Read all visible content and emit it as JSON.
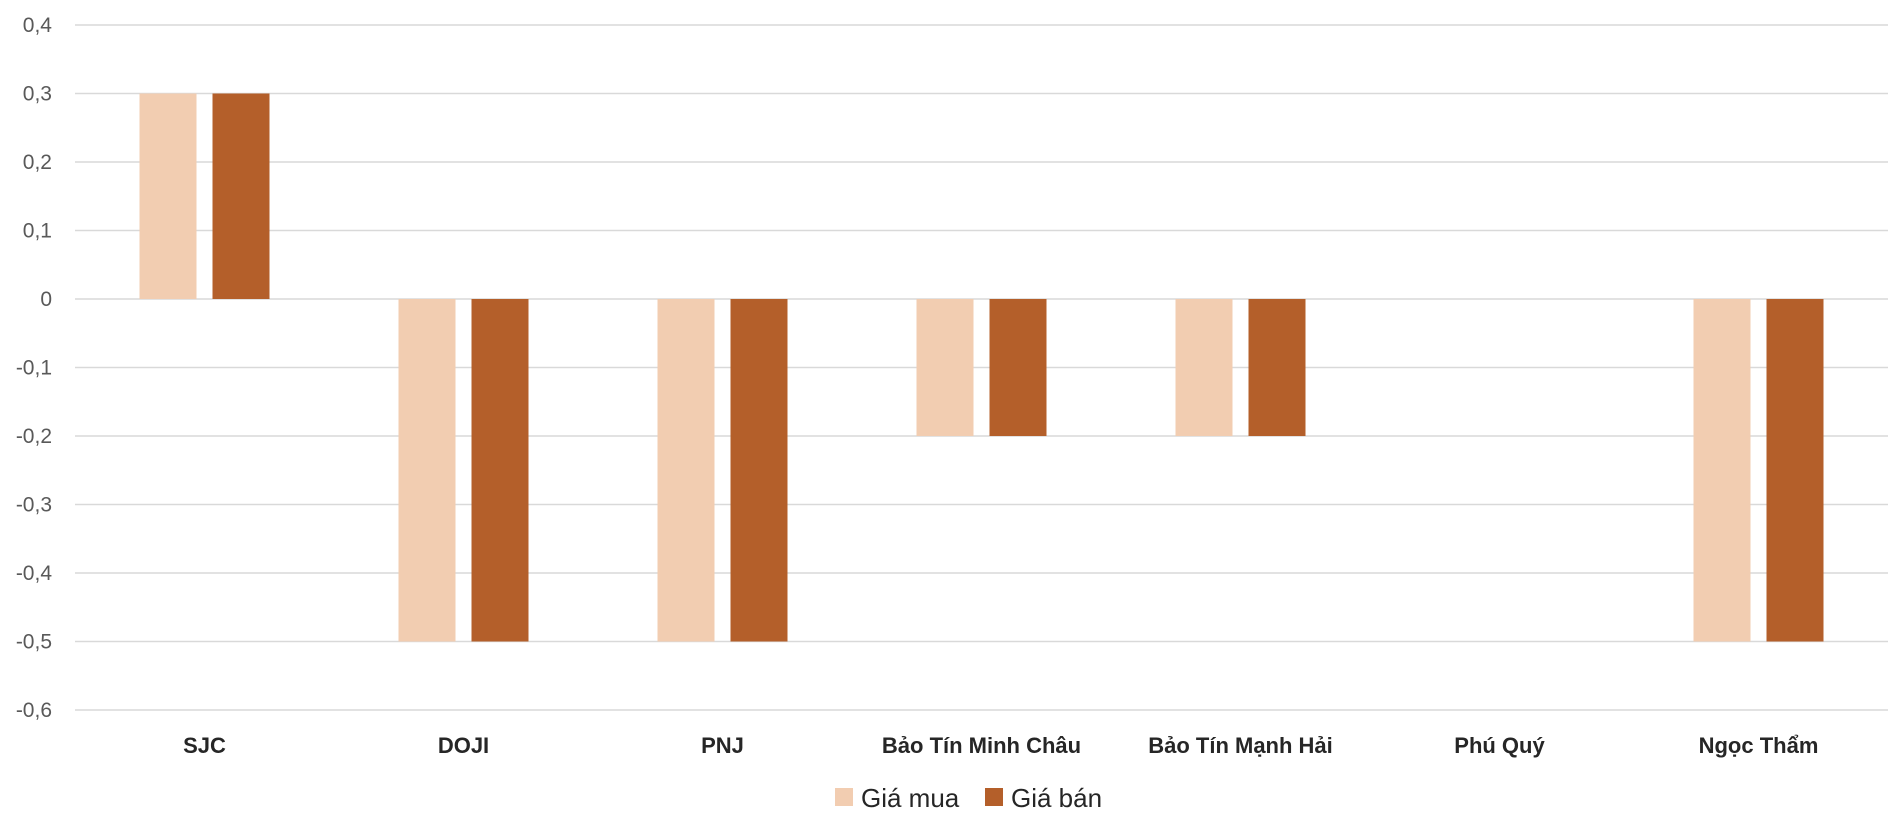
{
  "chart_data": {
    "type": "bar",
    "categories": [
      "SJC",
      "DOJI",
      "PNJ",
      "Bảo Tín Minh Châu",
      "Bảo Tín Mạnh Hải",
      "Phú Quý",
      "Ngọc Thẩm"
    ],
    "series": [
      {
        "name": "Giá mua",
        "color": "#f2cdb1",
        "values": [
          0.3,
          -0.5,
          -0.5,
          -0.2,
          -0.2,
          0,
          -0.5
        ]
      },
      {
        "name": "Giá bán",
        "color": "#b45f2a",
        "values": [
          0.3,
          -0.5,
          -0.5,
          -0.2,
          -0.2,
          0,
          -0.5
        ]
      }
    ],
    "title": "",
    "xlabel": "",
    "ylabel": "",
    "ylim": [
      -0.6,
      0.4
    ],
    "yticks": [
      0.4,
      0.3,
      0.2,
      0.1,
      0,
      -0.1,
      -0.2,
      -0.3,
      -0.4,
      -0.5,
      -0.6
    ],
    "ytick_labels": [
      "0,4",
      "0,3",
      "0,2",
      "0,1",
      "0",
      "-0,1",
      "-0,2",
      "-0,3",
      "-0,4",
      "-0,5",
      "-0,6"
    ],
    "grid": true,
    "legend_position": "bottom-center"
  }
}
